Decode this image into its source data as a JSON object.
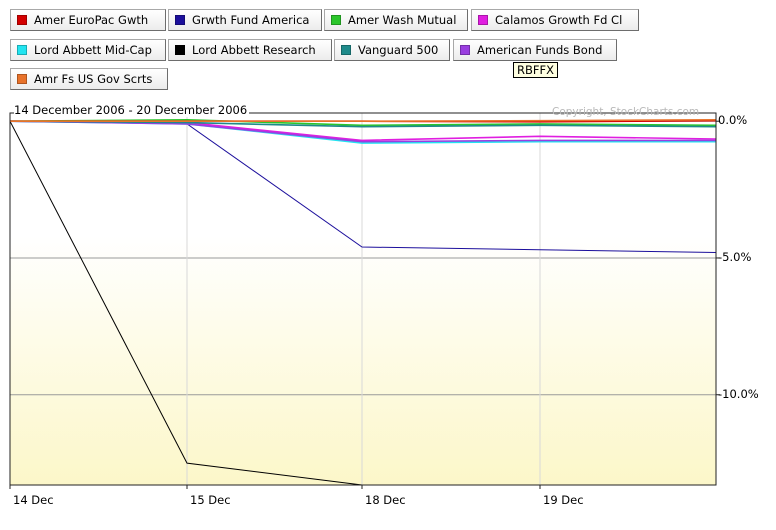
{
  "legend": {
    "items": [
      {
        "label": "Amer EuroPac Gwth",
        "color": "#d40000"
      },
      {
        "label": "Grwth Fund America",
        "color": "#1c0f9c"
      },
      {
        "label": "Amer Wash Mutual",
        "color": "#2bc62b"
      },
      {
        "label": "Calamos Growth Fd Cl",
        "color": "#e01ee0"
      },
      {
        "label": "Lord Abbett Mid-Cap",
        "color": "#22e4f0"
      },
      {
        "label": "Lord Abbett Research",
        "color": "#000000"
      },
      {
        "label": "Vanguard 500",
        "color": "#1e8a8a"
      },
      {
        "label": "American Funds Bond",
        "color": "#9a3ee0"
      },
      {
        "label": "Amr Fs US Gov Scrts",
        "color": "#e8722a"
      }
    ]
  },
  "tooltip": "RBFFX",
  "chart_header": {
    "period": "14 December 2006 - 20 December 2006",
    "copyright": "Copyright, StockCharts.com"
  },
  "chart_data": {
    "type": "line",
    "x": [
      "14 Dec",
      "15 Dec",
      "18 Dec",
      "19 Dec",
      "20 Dec"
    ],
    "xtick_labels": [
      "14 Dec",
      "15 Dec",
      "18 Dec",
      "19 Dec"
    ],
    "ytick_labels": [
      "0.0%",
      "-5.0%",
      "-10.0%"
    ],
    "yticks": [
      0,
      -5,
      -10
    ],
    "ylim": [
      -13.3,
      0.3
    ],
    "grid": true,
    "legend_position": "top",
    "series": [
      {
        "name": "Lord Abbett Research",
        "color": "#000000",
        "values": [
          0.0,
          -12.5,
          -13.3,
          null,
          null
        ]
      },
      {
        "name": "Grwth Fund America",
        "color": "#1c0f9c",
        "values": [
          0.0,
          -0.1,
          -4.6,
          -4.7,
          -4.8
        ]
      },
      {
        "name": "Calamos Growth Fd Cl",
        "color": "#e01ee0",
        "values": [
          0.0,
          -0.05,
          -0.7,
          -0.55,
          -0.65
        ]
      },
      {
        "name": "Lord Abbett Mid-Cap",
        "color": "#22e4f0",
        "values": [
          0.0,
          -0.1,
          -0.8,
          -0.75,
          -0.75
        ]
      },
      {
        "name": "American Funds Bond",
        "color": "#9a3ee0",
        "values": [
          0.0,
          -0.1,
          -0.75,
          -0.7,
          -0.7
        ]
      },
      {
        "name": "Amer Wash Mutual",
        "color": "#2bc62b",
        "values": [
          0.0,
          0.05,
          -0.15,
          -0.1,
          -0.15
        ]
      },
      {
        "name": "Vanguard 500",
        "color": "#1e8a8a",
        "values": [
          0.0,
          -0.05,
          -0.2,
          -0.15,
          -0.2
        ]
      },
      {
        "name": "Amer EuroPac Gwth",
        "color": "#d40000",
        "values": [
          0.0,
          0.0,
          0.0,
          -0.02,
          0.02
        ]
      },
      {
        "name": "Amr Fs US Gov Scrts",
        "color": "#e8722a",
        "values": [
          0.0,
          0.0,
          0.0,
          0.02,
          0.05
        ]
      }
    ]
  }
}
